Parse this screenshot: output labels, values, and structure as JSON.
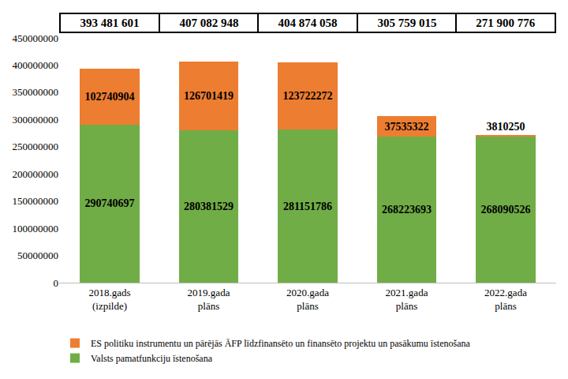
{
  "chart_data": {
    "type": "bar",
    "stacked": true,
    "data_labels": true,
    "grid": false,
    "legend": "bottom",
    "categories": [
      "2018.gads (izpilde)",
      "2019.gada plāns",
      "2020.gada plāns",
      "2021.gada plāns",
      "2022.gada plāns"
    ],
    "series": [
      {
        "name": "Valsts pamatfunkciju īstenošana",
        "color": "#71ad47",
        "values": [
          290740697,
          280381529,
          281151786,
          268223693,
          268090526
        ]
      },
      {
        "name": "ES politiku instrumentu un pārējās ĀFP līdzfinansēto un finansēto projektu un pasākumu īstenošana",
        "color": "#ed7d31",
        "values": [
          102740904,
          126701419,
          123722272,
          37535322,
          3810250
        ]
      }
    ],
    "totals": {
      "values": [
        393481601,
        407082948,
        404874058,
        305759015,
        271900776
      ],
      "value_labels": [
        "393 481 601",
        "407 082 948",
        "404 874 058",
        "305 759 015",
        "271 900 776"
      ]
    },
    "ylim": [
      0,
      450000000
    ],
    "yticks": [
      0,
      50000000,
      100000000,
      150000000,
      200000000,
      250000000,
      300000000,
      350000000,
      400000000,
      450000000
    ]
  }
}
